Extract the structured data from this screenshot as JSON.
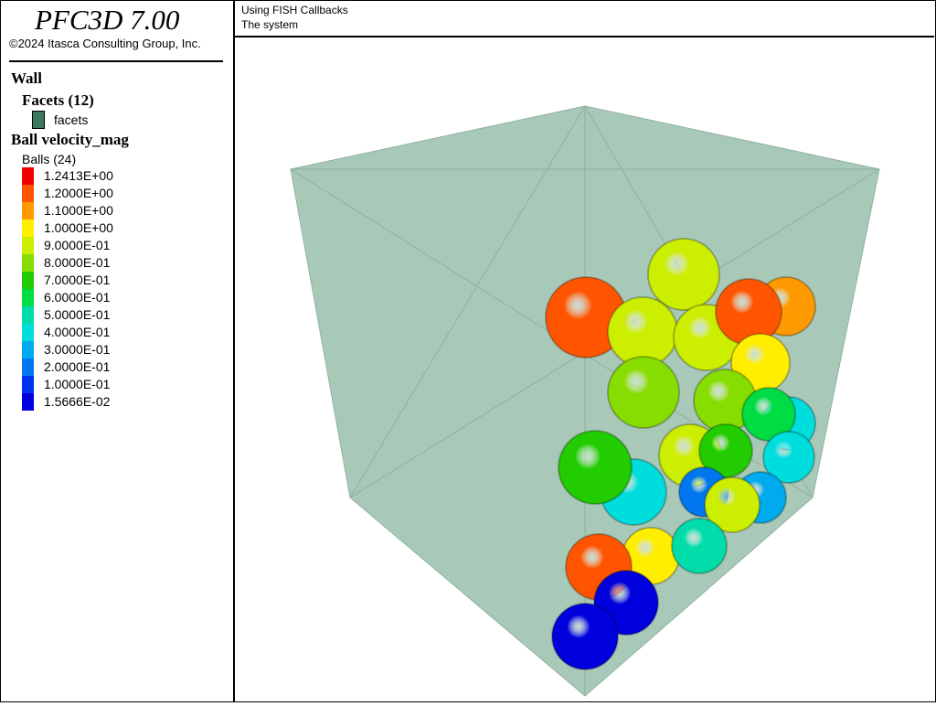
{
  "app": {
    "title": "PFC3D 7.00",
    "copyright": "©2024 Itasca Consulting Group, Inc."
  },
  "header": {
    "line1": "Using FISH Callbacks",
    "line2": "The system"
  },
  "legend": {
    "wall_title": "Wall",
    "facets_title": "Facets (12)",
    "facets_label": "facets",
    "facets_color": "#3d7a5b",
    "ball_title": "Ball velocity_mag",
    "balls_label": "Balls (24)",
    "colorbar": [
      {
        "label": "1.2413E+00",
        "color": "#ee0000"
      },
      {
        "label": "1.2000E+00",
        "color": "#ff5500"
      },
      {
        "label": "1.1000E+00",
        "color": "#ff9900"
      },
      {
        "label": "1.0000E+00",
        "color": "#ffee00"
      },
      {
        "label": "9.0000E-01",
        "color": "#ccee00"
      },
      {
        "label": "8.0000E-01",
        "color": "#88dd00"
      },
      {
        "label": "7.0000E-01",
        "color": "#22cc00"
      },
      {
        "label": "6.0000E-01",
        "color": "#00dd44"
      },
      {
        "label": "5.0000E-01",
        "color": "#00ddaa"
      },
      {
        "label": "4.0000E-01",
        "color": "#00dddd"
      },
      {
        "label": "3.0000E-01",
        "color": "#00aaee"
      },
      {
        "label": "2.0000E-01",
        "color": "#0077ee"
      },
      {
        "label": "1.0000E-01",
        "color": "#0033ee"
      },
      {
        "label": "1.5666E-02",
        "color": "#0000dd"
      }
    ]
  },
  "scene": {
    "wall_color": "#a9c9b8",
    "balls": [
      {
        "vel": 0.9
      },
      {
        "vel": 1.24
      },
      {
        "vel": 1.15
      },
      {
        "vel": 0.95
      },
      {
        "vel": 0.92
      },
      {
        "vel": 1.24
      },
      {
        "vel": 1.02
      },
      {
        "vel": 0.88
      },
      {
        "vel": 0.85
      },
      {
        "vel": 0.45
      },
      {
        "vel": 0.62
      },
      {
        "vel": 0.92
      },
      {
        "vel": 0.7
      },
      {
        "vel": 0.47
      },
      {
        "vel": 0.78
      },
      {
        "vel": 0.4
      },
      {
        "vel": 0.25
      },
      {
        "vel": 0.38
      },
      {
        "vel": 0.9
      },
      {
        "vel": 1.05
      },
      {
        "vel": 0.52
      },
      {
        "vel": 1.24
      },
      {
        "vel": 0.08
      },
      {
        "vel": 0.02
      }
    ]
  }
}
